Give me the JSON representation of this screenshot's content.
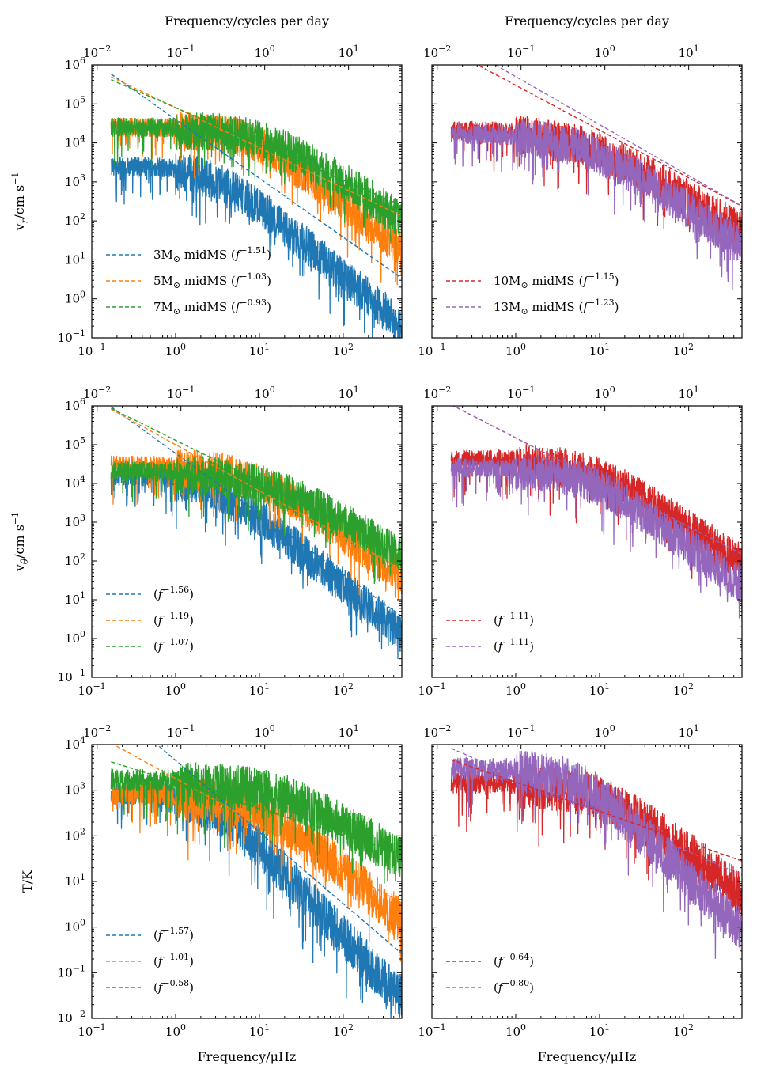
{
  "figure": {
    "top_axis_label": "Frequency/cycles per day",
    "bottom_axis_label": "Frequency/μHz",
    "row_ylabels": [
      "v_r/cm s^-1",
      "v_θ/cm s^-1",
      "T/K"
    ],
    "colors": {
      "3M": "#1f77b4",
      "5M": "#ff7f0e",
      "7M": "#2ca02c",
      "10M": "#d62728",
      "13M": "#9467bd"
    }
  },
  "chart_data": [
    {
      "id": "vr-low",
      "type": "line",
      "row": 0,
      "col": 0,
      "ylabel": "v_r/cm s^-1",
      "xlabel": "",
      "xlim": [
        0.1,
        500
      ],
      "ylim": [
        0.1,
        1000000
      ],
      "x_ticks": [
        "10^-1",
        "10^0",
        "10^1",
        "10^2"
      ],
      "top_x_ticks": [
        "10^-2",
        "10^-1",
        "10^0",
        "10^1"
      ],
      "y_ticks": [
        "10^-1",
        "10^0",
        "10^1",
        "10^2",
        "10^3",
        "10^4",
        "10^5",
        "10^6"
      ],
      "legend_position": "lower-left",
      "series": [
        {
          "name": "3M midMS",
          "key": "3M",
          "label_text": "3M",
          "label_rest": " midMS (",
          "exponent": "-1.51",
          "fit_exponent": -1.51,
          "fit_amplitude_at_1uHz": 40000,
          "low_plateau": 3000,
          "turnover": 3,
          "hi_slope": -1.8
        },
        {
          "name": "5M midMS",
          "key": "5M",
          "label_text": "5M",
          "label_rest": " midMS (",
          "exponent": "-1.03",
          "fit_exponent": -1.03,
          "fit_amplitude_at_1uHz": 80000,
          "low_plateau": 30000,
          "turnover": 8,
          "hi_slope": -1.7
        },
        {
          "name": "7M midMS",
          "key": "7M",
          "label_text": "7M",
          "label_rest": " midMS (",
          "exponent": "-0.93",
          "fit_exponent": -0.93,
          "fit_amplitude_at_1uHz": 80000,
          "low_plateau": 30000,
          "turnover": 12,
          "hi_slope": -1.4
        }
      ]
    },
    {
      "id": "vr-high",
      "type": "line",
      "row": 0,
      "col": 1,
      "xlim": [
        0.1,
        500
      ],
      "ylim": [
        0.1,
        1000000
      ],
      "x_ticks": [
        "10^-1",
        "10^0",
        "10^1",
        "10^2"
      ],
      "top_x_ticks": [
        "10^-2",
        "10^-1",
        "10^0",
        "10^1"
      ],
      "legend_position": "lower-left",
      "series": [
        {
          "name": "10M midMS",
          "key": "10M",
          "label_text": "10M",
          "label_rest": " midMS (",
          "exponent": "-1.15",
          "fit_exponent": -1.15,
          "fit_amplitude_at_1uHz": 300000,
          "low_plateau": 25000,
          "turnover": 6,
          "hi_slope": -1.3
        },
        {
          "name": "13M midMS",
          "key": "13M",
          "label_text": "13M",
          "label_rest": " midMS (",
          "exponent": "-1.23",
          "fit_exponent": -1.23,
          "fit_amplitude_at_1uHz": 500000,
          "low_plateau": 20000,
          "turnover": 6,
          "hi_slope": -1.45
        }
      ]
    },
    {
      "id": "vt-low",
      "type": "line",
      "row": 1,
      "col": 0,
      "ylabel": "v_θ/cm s^-1",
      "xlim": [
        0.1,
        500
      ],
      "ylim": [
        0.1,
        1000000
      ],
      "x_ticks": [
        "10^-1",
        "10^0",
        "10^1",
        "10^2"
      ],
      "top_x_ticks": [
        "10^-2",
        "10^-1",
        "10^0",
        "10^1"
      ],
      "y_ticks": [
        "10^-1",
        "10^0",
        "10^1",
        "10^2",
        "10^3",
        "10^4",
        "10^5",
        "10^6"
      ],
      "legend_position": "lower-left",
      "series": [
        {
          "name": "3M",
          "key": "3M",
          "label_text": "",
          "label_rest": "(",
          "exponent": "-1.56",
          "fit_exponent": -1.56,
          "fit_amplitude_at_1uHz": 60000,
          "low_plateau": 18000,
          "turnover": 3,
          "hi_slope": -1.8
        },
        {
          "name": "5M",
          "key": "5M",
          "label_text": "",
          "label_rest": "(",
          "exponent": "-1.19",
          "fit_exponent": -1.19,
          "fit_amplitude_at_1uHz": 100000,
          "low_plateau": 35000,
          "turnover": 8,
          "hi_slope": -1.55
        },
        {
          "name": "7M",
          "key": "7M",
          "label_text": "",
          "label_rest": "(",
          "exponent": "-1.07",
          "fit_exponent": -1.07,
          "fit_amplitude_at_1uHz": 130000,
          "low_plateau": 25000,
          "turnover": 12,
          "hi_slope": -1.3
        }
      ]
    },
    {
      "id": "vt-high",
      "type": "line",
      "row": 1,
      "col": 1,
      "xlim": [
        0.1,
        500
      ],
      "ylim": [
        0.1,
        1000000
      ],
      "x_ticks": [
        "10^-1",
        "10^0",
        "10^1",
        "10^2"
      ],
      "top_x_ticks": [
        "10^-2",
        "10^-1",
        "10^0",
        "10^1"
      ],
      "legend_position": "lower-left",
      "series": [
        {
          "name": "10M",
          "key": "10M",
          "label_text": "",
          "label_rest": "(",
          "exponent": "-1.11",
          "fit_exponent": -1.11,
          "fit_amplitude_at_1uHz": 150000,
          "low_plateau": 50000,
          "turnover": 8,
          "hi_slope": -1.45
        },
        {
          "name": "13M",
          "key": "13M",
          "label_text": "",
          "label_rest": "(",
          "exponent": "-1.11",
          "fit_exponent": -1.11,
          "fit_amplitude_at_1uHz": 150000,
          "low_plateau": 30000,
          "turnover": 7,
          "hi_slope": -1.6
        }
      ]
    },
    {
      "id": "t-low",
      "type": "line",
      "row": 2,
      "col": 0,
      "ylabel": "T/K",
      "xlabel": "Frequency/μHz",
      "xlim": [
        0.1,
        500
      ],
      "ylim": [
        0.01,
        10000
      ],
      "x_ticks": [
        "10^-1",
        "10^0",
        "10^1",
        "10^2"
      ],
      "top_x_ticks": [
        "10^-2",
        "10^-1",
        "10^0",
        "10^1"
      ],
      "y_ticks": [
        "10^-2",
        "10^-1",
        "10^0",
        "10^1",
        "10^2",
        "10^3",
        "10^4"
      ],
      "legend_position": "lower-left",
      "series": [
        {
          "name": "3M",
          "key": "3M",
          "label_text": "",
          "label_rest": "(",
          "exponent": "-1.57",
          "fit_exponent": -1.57,
          "fit_amplitude_at_1uHz": 4500,
          "low_plateau": 1000,
          "turnover": 3,
          "hi_slope": -2.0
        },
        {
          "name": "5M",
          "key": "5M",
          "label_text": "",
          "label_rest": "(",
          "exponent": "-1.01",
          "fit_exponent": -1.01,
          "fit_amplitude_at_1uHz": 1800,
          "low_plateau": 1000,
          "turnover": 10,
          "hi_slope": -1.6
        },
        {
          "name": "7M",
          "key": "7M",
          "label_text": "",
          "label_rest": "(",
          "exponent": "-0.58",
          "fit_exponent": -0.58,
          "fit_amplitude_at_1uHz": 1500,
          "low_plateau": 2000,
          "turnover": 20,
          "hi_slope": -1.2
        }
      ]
    },
    {
      "id": "t-high",
      "type": "line",
      "row": 2,
      "col": 1,
      "xlabel": "Frequency/μHz",
      "xlim": [
        0.1,
        500
      ],
      "ylim": [
        0.01,
        10000
      ],
      "x_ticks": [
        "10^-1",
        "10^0",
        "10^1",
        "10^2"
      ],
      "top_x_ticks": [
        "10^-2",
        "10^-1",
        "10^0",
        "10^1"
      ],
      "legend_position": "lower-left",
      "series": [
        {
          "name": "10M",
          "key": "10M",
          "label_text": "",
          "label_rest": "(",
          "exponent": "-0.64",
          "fit_exponent": -0.64,
          "fit_amplitude_at_1uHz": 1500,
          "low_plateau": 1800,
          "turnover": 10,
          "hi_slope": -1.4
        },
        {
          "name": "13M",
          "key": "13M",
          "label_text": "",
          "label_rest": "(",
          "exponent": "-0.80",
          "fit_exponent": -0.8,
          "fit_amplitude_at_1uHz": 2000,
          "low_plateau": 3500,
          "turnover": 6,
          "hi_slope": -1.8
        }
      ]
    }
  ]
}
